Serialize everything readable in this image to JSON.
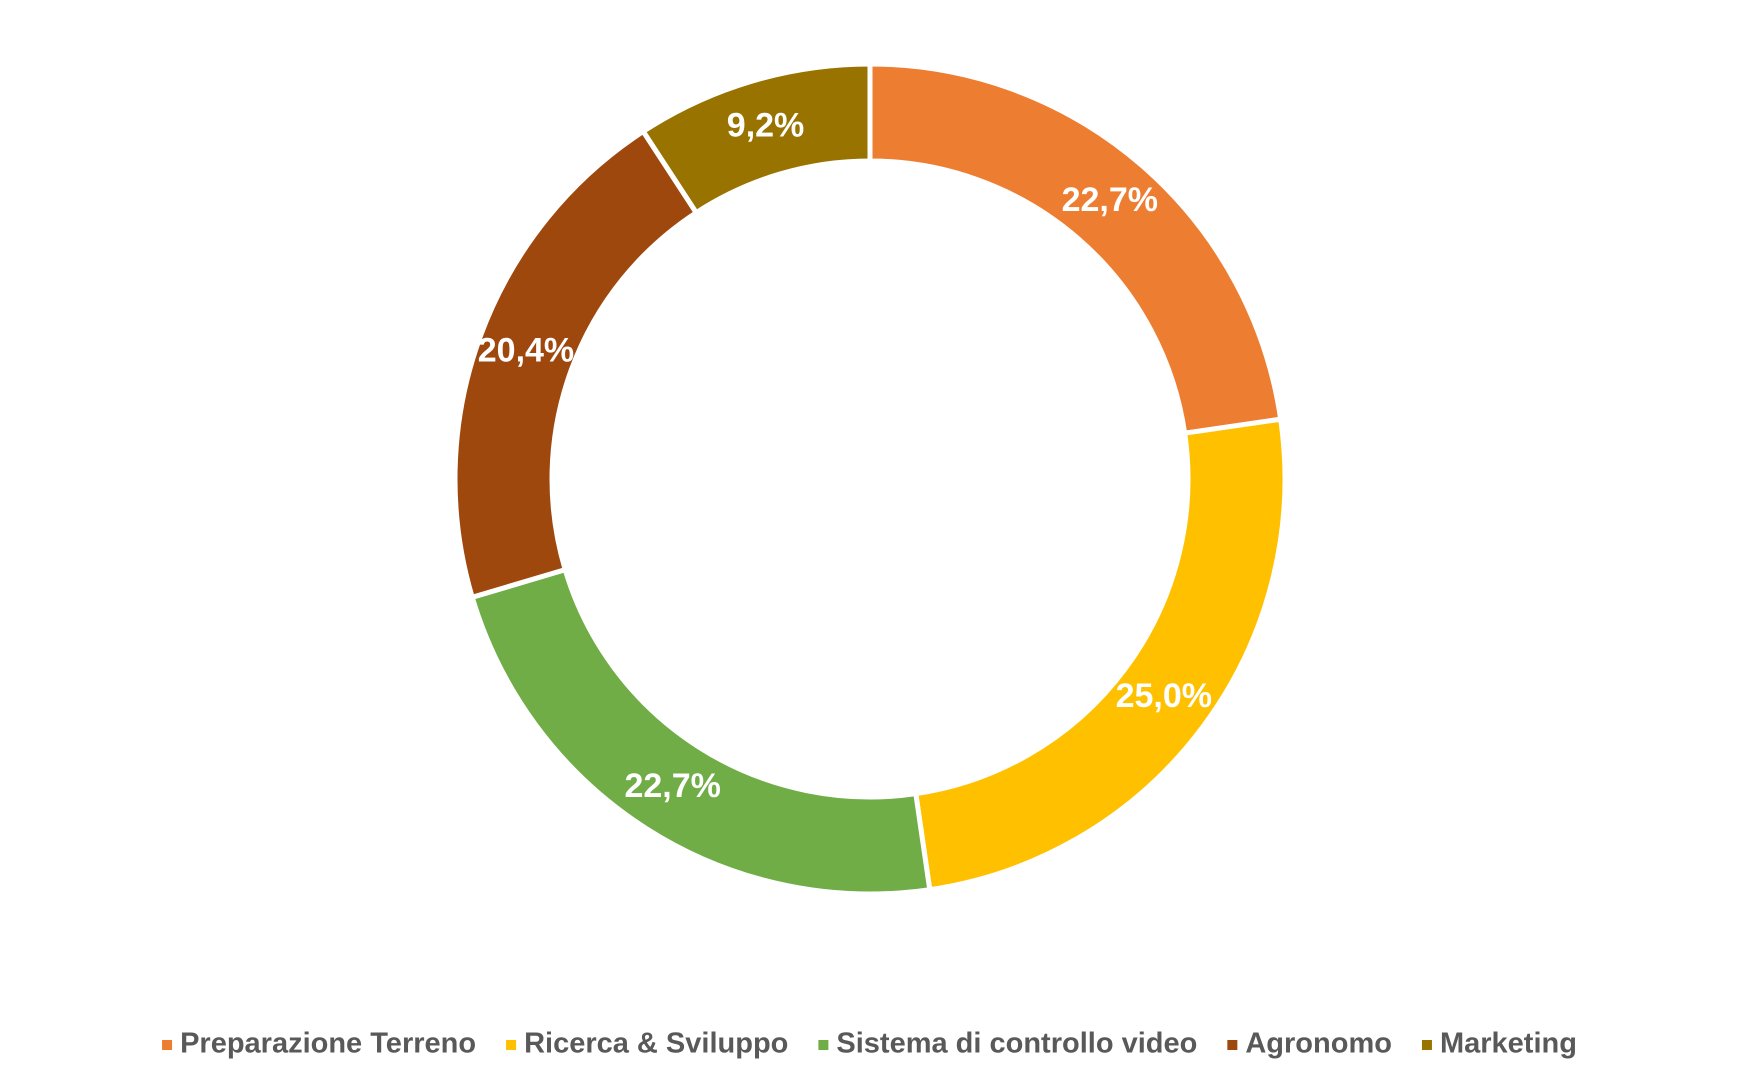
{
  "chart_data": {
    "type": "doughnut",
    "categories": [
      "Preparazione Terreno",
      "Ricerca & Sviluppo",
      "Sistema di controllo video",
      "Agronomo",
      "Marketing"
    ],
    "values": [
      22.7,
      25.0,
      22.7,
      20.4,
      9.2
    ],
    "value_labels": [
      "22,7%",
      "25,0%",
      "22,7%",
      "20,4%",
      "9,2%"
    ],
    "colors": [
      "#ed7d31",
      "#ffc000",
      "#70ad47",
      "#9e480e",
      "#997300"
    ],
    "legend": "bottom"
  }
}
